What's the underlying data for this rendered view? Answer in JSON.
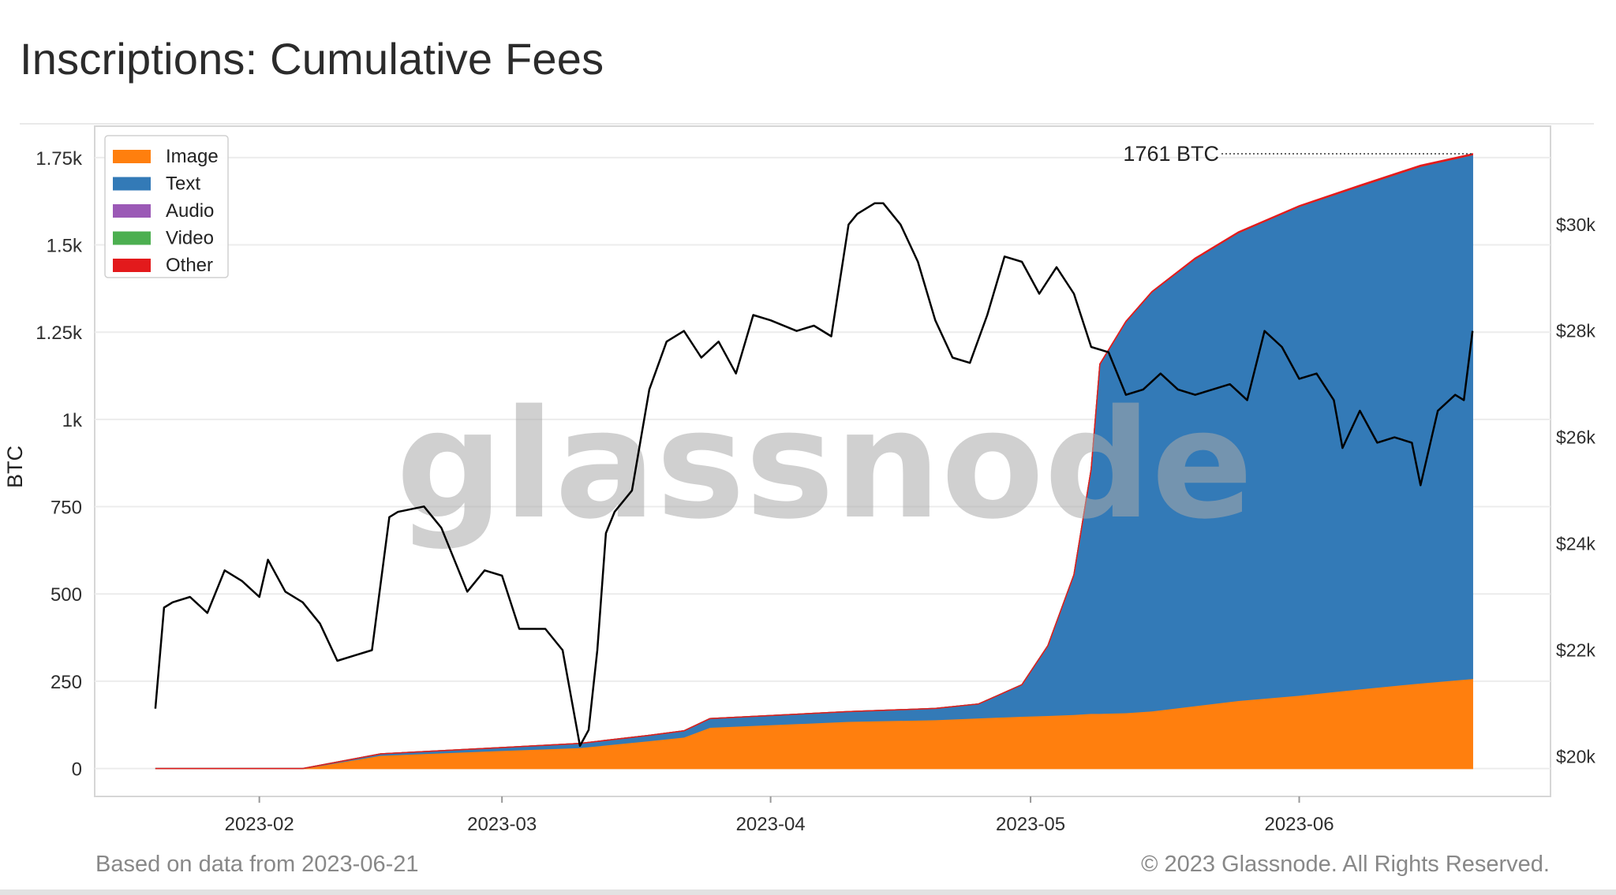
{
  "page": {
    "title": "Inscriptions: Cumulative Fees",
    "footer_left": "Based on data from 2023-06-21",
    "footer_right": "© 2023 Glassnode. All Rights Reserved.",
    "watermark": "glassnode"
  },
  "chart_data": {
    "type": "area",
    "stacked": true,
    "title": "Inscriptions: Cumulative Fees",
    "ylabel": "BTC",
    "ylim": [
      -80,
      1840
    ],
    "y_ticks": [
      0,
      250,
      500,
      750,
      1000,
      1250,
      1500,
      1750
    ],
    "y_tick_labels": [
      "0",
      "250",
      "500",
      "750",
      "1k",
      "1.25k",
      "1.5k",
      "1.75k"
    ],
    "x_ticks": [
      "2023-02-01",
      "2023-03-01",
      "2023-04-01",
      "2023-05-01",
      "2023-06-01"
    ],
    "x_tick_labels": [
      "2023-02",
      "2023-03",
      "2023-04",
      "2023-05",
      "2023-06"
    ],
    "xlim": [
      "2023-01-13",
      "2023-06-30"
    ],
    "legend": [
      "Image",
      "Text",
      "Audio",
      "Video",
      "Other"
    ],
    "legend_position": "top-left",
    "annotation": "1761 BTC",
    "grid": true,
    "colors": {
      "Image": "#ff7f0e",
      "Text": "#337ab7",
      "Audio": "#9b59b6",
      "Video": "#4caf50",
      "Other": "#e31a1c",
      "price": "#000000"
    },
    "x": [
      "2023-01-20",
      "2023-02-01",
      "2023-02-06",
      "2023-02-15",
      "2023-03-01",
      "2023-03-10",
      "2023-03-18",
      "2023-03-22",
      "2023-03-25",
      "2023-04-10",
      "2023-04-20",
      "2023-04-25",
      "2023-04-30",
      "2023-05-03",
      "2023-05-06",
      "2023-05-08",
      "2023-05-09",
      "2023-05-12",
      "2023-05-15",
      "2023-05-20",
      "2023-05-25",
      "2023-06-01",
      "2023-06-08",
      "2023-06-15",
      "2023-06-21"
    ],
    "series": [
      {
        "name": "Image",
        "values": [
          0,
          0,
          0,
          38,
          52,
          60,
          80,
          90,
          118,
          135,
          140,
          145,
          150,
          152,
          155,
          158,
          158,
          160,
          165,
          180,
          195,
          210,
          228,
          245,
          258
        ]
      },
      {
        "name": "Text",
        "values": [
          0,
          0,
          0,
          4,
          8,
          12,
          15,
          18,
          25,
          28,
          32,
          40,
          90,
          200,
          400,
          700,
          1000,
          1120,
          1200,
          1280,
          1340,
          1400,
          1440,
          1480,
          1500
        ]
      },
      {
        "name": "Audio",
        "values": [
          0,
          0,
          0,
          0,
          0,
          0,
          0,
          0,
          0,
          0,
          0,
          0,
          0,
          0,
          0,
          0,
          0,
          0,
          0,
          0,
          0,
          0,
          0,
          0,
          0
        ]
      },
      {
        "name": "Video",
        "values": [
          0,
          0,
          0,
          0,
          0,
          0,
          0,
          0,
          0,
          0,
          0,
          0,
          0,
          0,
          0,
          0,
          0,
          0,
          0,
          0,
          0,
          0,
          0,
          0,
          0
        ]
      },
      {
        "name": "Other",
        "values": [
          0,
          0,
          0,
          0,
          0,
          0,
          0,
          0,
          0,
          0,
          0,
          0,
          0,
          0,
          0,
          0,
          1,
          1,
          1,
          2,
          2,
          2,
          3,
          3,
          3
        ]
      }
    ],
    "price": {
      "name": "BTC price",
      "y2_ticks": [
        20000,
        22000,
        24000,
        26000,
        28000,
        30000
      ],
      "y2_tick_labels": [
        "$20k",
        "$22k",
        "$24k",
        "$26k",
        "$28k",
        "$30k"
      ],
      "y2lim": [
        19250,
        31850
      ],
      "x": [
        "2023-01-20",
        "2023-01-21",
        "2023-01-22",
        "2023-01-24",
        "2023-01-26",
        "2023-01-28",
        "2023-01-30",
        "2023-02-01",
        "2023-02-02",
        "2023-02-04",
        "2023-02-06",
        "2023-02-08",
        "2023-02-10",
        "2023-02-12",
        "2023-02-14",
        "2023-02-16",
        "2023-02-17",
        "2023-02-20",
        "2023-02-22",
        "2023-02-25",
        "2023-02-27",
        "2023-03-01",
        "2023-03-03",
        "2023-03-06",
        "2023-03-08",
        "2023-03-09",
        "2023-03-10",
        "2023-03-11",
        "2023-03-12",
        "2023-03-13",
        "2023-03-14",
        "2023-03-16",
        "2023-03-18",
        "2023-03-20",
        "2023-03-22",
        "2023-03-24",
        "2023-03-26",
        "2023-03-28",
        "2023-03-30",
        "2023-04-01",
        "2023-04-04",
        "2023-04-06",
        "2023-04-08",
        "2023-04-10",
        "2023-04-11",
        "2023-04-13",
        "2023-04-14",
        "2023-04-16",
        "2023-04-18",
        "2023-04-20",
        "2023-04-22",
        "2023-04-24",
        "2023-04-26",
        "2023-04-28",
        "2023-04-30",
        "2023-05-02",
        "2023-05-04",
        "2023-05-06",
        "2023-05-08",
        "2023-05-10",
        "2023-05-12",
        "2023-05-14",
        "2023-05-16",
        "2023-05-18",
        "2023-05-20",
        "2023-05-22",
        "2023-05-24",
        "2023-05-26",
        "2023-05-28",
        "2023-05-30",
        "2023-06-01",
        "2023-06-03",
        "2023-06-05",
        "2023-06-06",
        "2023-06-08",
        "2023-06-10",
        "2023-06-12",
        "2023-06-14",
        "2023-06-15",
        "2023-06-17",
        "2023-06-19",
        "2023-06-20",
        "2023-06-21"
      ],
      "values": [
        20900,
        22800,
        22900,
        23000,
        22700,
        23500,
        23300,
        23000,
        23700,
        23100,
        22900,
        22500,
        21800,
        21900,
        22000,
        24500,
        24600,
        24700,
        24300,
        23100,
        23500,
        23400,
        22400,
        22400,
        22000,
        21100,
        20200,
        20500,
        22000,
        24200,
        24600,
        25000,
        26900,
        27800,
        28000,
        27500,
        27800,
        27200,
        28300,
        28200,
        28000,
        28100,
        27900,
        30000,
        30200,
        30400,
        30400,
        30000,
        29300,
        28200,
        27500,
        27400,
        28300,
        29400,
        29300,
        28700,
        29200,
        28700,
        27700,
        27600,
        26800,
        26900,
        27200,
        26900,
        26800,
        26900,
        27000,
        26700,
        28000,
        27700,
        27100,
        27200,
        26700,
        25800,
        26500,
        25900,
        26000,
        25900,
        25100,
        26500,
        26800,
        26700,
        28000
      ]
    }
  }
}
